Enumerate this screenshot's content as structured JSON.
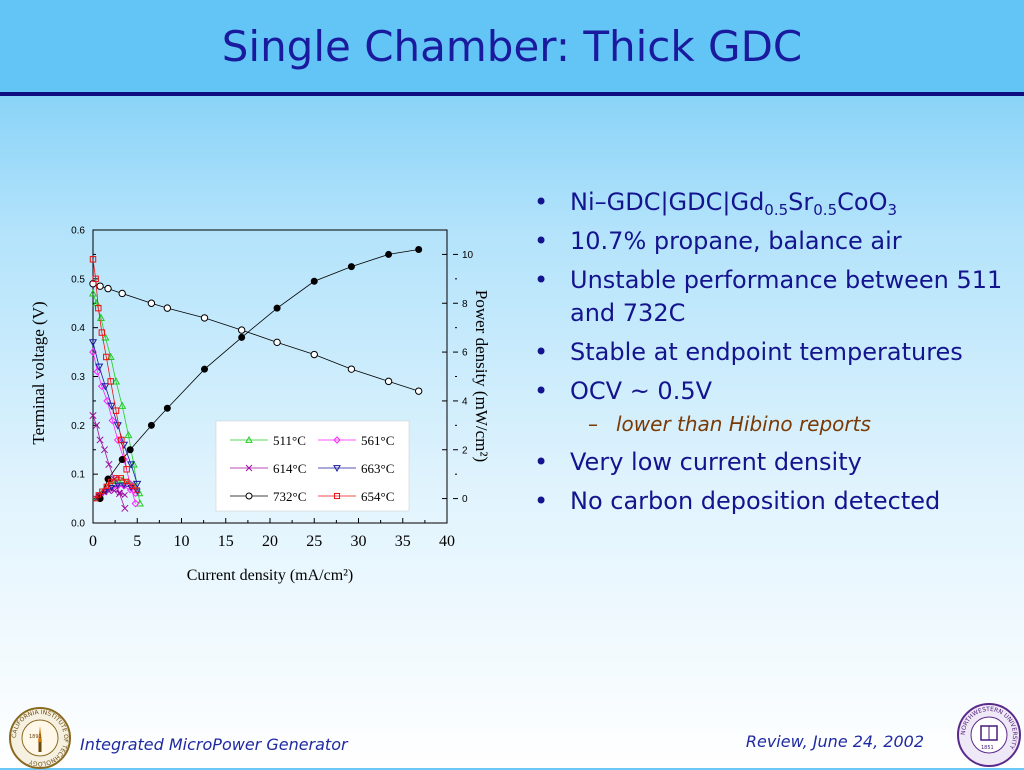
{
  "slide": {
    "title": "Single Chamber: Thick GDC",
    "bullets": [
      {
        "level": 1,
        "parts": [
          [
            "Ni–GDC|GDC|Gd",
            ""
          ],
          [
            "0.5",
            "sub"
          ],
          [
            "Sr",
            ""
          ],
          [
            "0.5",
            "sub"
          ],
          [
            "CoO",
            ""
          ],
          [
            "3",
            "sub"
          ]
        ]
      },
      {
        "level": 1,
        "text": "10.7% propane, balance air"
      },
      {
        "level": 1,
        "text": "Unstable performance between 511 and 732C"
      },
      {
        "level": 1,
        "text": "Stable at endpoint temperatures"
      },
      {
        "level": 1,
        "text": "OCV ~ 0.5V"
      },
      {
        "level": 2,
        "text": "lower than Hibino reports"
      },
      {
        "level": 1,
        "text": "Very low current density"
      },
      {
        "level": 1,
        "text": "No carbon deposition detected"
      }
    ],
    "footer_left": "Integrated MicroPower Generator",
    "footer_right": "Review, June 24, 2002",
    "left_seal_text": "CALIFORNIA INSTITUTE OF TECHNOLOGY",
    "left_seal_year": "1891",
    "right_seal_text": "NORTHWESTERN UNIVERSITY",
    "right_seal_year": "1851"
  },
  "chart_data": {
    "type": "scatter",
    "xlabel": "Current density (mA/cm²)",
    "ylabel": "Terminal voltage (V)",
    "y2label": "Power density (mW/cm²)",
    "xlim": [
      0,
      40
    ],
    "ylim": [
      0,
      0.6
    ],
    "y2lim": [
      -1,
      11
    ],
    "xticks": [
      "0",
      "5",
      "10",
      "15",
      "20",
      "25",
      "30",
      "35",
      "40"
    ],
    "yticks": [
      "0.0",
      "0.1",
      "0.2",
      "0.3",
      "0.4",
      "0.5",
      "0.6"
    ],
    "y2ticks": [
      "0",
      "2",
      "4",
      "6",
      "8",
      "10"
    ],
    "legend_position": "lower-right inset",
    "colors": {
      "511": "#22cc22",
      "561": "#ff22ff",
      "614": "#a010a0",
      "663": "#1a1aa0",
      "732": "#000000",
      "654": "#ee1111"
    },
    "series": [
      {
        "name": "511°C",
        "marker": "triangle-up",
        "color": "#22cc22",
        "voltage": {
          "x": [
            0,
            0.4,
            0.9,
            1.4,
            2,
            2.6,
            3.3,
            4,
            4.6,
            5.3
          ],
          "y": [
            0.47,
            0.45,
            0.42,
            0.38,
            0.34,
            0.29,
            0.24,
            0.18,
            0.12,
            0.04
          ]
        },
        "power": {
          "x": [
            0.4,
            0.9,
            1.4,
            2,
            2.6,
            3.3,
            4,
            4.6,
            5.3
          ],
          "y": [
            0.0,
            0.2,
            0.45,
            0.6,
            0.7,
            0.75,
            0.7,
            0.6,
            0.2
          ]
        }
      },
      {
        "name": "561°C",
        "marker": "diamond",
        "color": "#ff22ff",
        "voltage": {
          "x": [
            0,
            0.5,
            1,
            1.6,
            2.2,
            2.8,
            3.5,
            4.2,
            4.8
          ],
          "y": [
            0.35,
            0.31,
            0.28,
            0.25,
            0.21,
            0.17,
            0.13,
            0.08,
            0.04
          ]
        },
        "power": {
          "x": [
            0.5,
            1,
            1.6,
            2.2,
            2.8,
            3.5,
            4.2,
            4.8
          ],
          "y": [
            0.05,
            0.2,
            0.35,
            0.45,
            0.5,
            0.5,
            0.35,
            0.2
          ]
        }
      },
      {
        "name": "614°C",
        "marker": "x",
        "color": "#a010a0",
        "voltage": {
          "x": [
            0,
            0.4,
            0.8,
            1.3,
            1.8,
            2.4,
            3,
            3.6
          ],
          "y": [
            0.22,
            0.2,
            0.17,
            0.15,
            0.12,
            0.09,
            0.06,
            0.03
          ]
        },
        "power": {
          "x": [
            0.4,
            0.8,
            1.3,
            1.8,
            2.4,
            3,
            3.6
          ],
          "y": [
            0.0,
            0.15,
            0.25,
            0.3,
            0.32,
            0.25,
            0.15
          ]
        }
      },
      {
        "name": "663°C",
        "marker": "triangle-down",
        "color": "#1a1aa0",
        "voltage": {
          "x": [
            0,
            0.7,
            1.4,
            2.1,
            2.8,
            3.5,
            4.3,
            5
          ],
          "y": [
            0.37,
            0.32,
            0.28,
            0.24,
            0.2,
            0.16,
            0.12,
            0.08
          ]
        },
        "power": {
          "x": [
            0.7,
            1.4,
            2.1,
            2.8,
            3.5,
            4.3,
            5
          ],
          "y": [
            0.1,
            0.3,
            0.45,
            0.55,
            0.55,
            0.45,
            0.3
          ]
        }
      },
      {
        "name": "732°C",
        "marker": "circle",
        "color": "#000000",
        "voltage": {
          "x": [
            0,
            0.8,
            1.7,
            3.3,
            6.6,
            8.4,
            12.6,
            16.8,
            20.8,
            25,
            29.2,
            33.4,
            36.8
          ],
          "y": [
            0.49,
            0.485,
            0.48,
            0.47,
            0.45,
            0.44,
            0.42,
            0.395,
            0.37,
            0.345,
            0.315,
            0.29,
            0.27
          ]
        },
        "power": {
          "x": [
            0.8,
            1.7,
            3.3,
            4.2,
            6.6,
            8.4,
            12.6,
            16.8,
            20.8,
            25,
            29.2,
            33.4,
            36.8
          ],
          "y": [
            0.0,
            0.8,
            1.6,
            2.0,
            3.0,
            3.7,
            5.3,
            6.6,
            7.8,
            8.9,
            9.5,
            10.0,
            10.2
          ]
        }
      },
      {
        "name": "654°C",
        "marker": "square",
        "color": "#ee1111",
        "voltage": {
          "x": [
            0,
            0.3,
            0.6,
            1,
            1.5,
            2,
            2.6,
            3.2,
            3.8
          ],
          "y": [
            0.54,
            0.5,
            0.44,
            0.39,
            0.34,
            0.29,
            0.23,
            0.17,
            0.11
          ]
        },
        "power": {
          "x": [
            0.3,
            0.6,
            1,
            1.5,
            2,
            2.6,
            3.2,
            3.8,
            4.4,
            5
          ],
          "y": [
            0.0,
            0.15,
            0.3,
            0.5,
            0.7,
            0.85,
            0.85,
            0.7,
            0.5,
            0.35
          ]
        }
      }
    ]
  }
}
